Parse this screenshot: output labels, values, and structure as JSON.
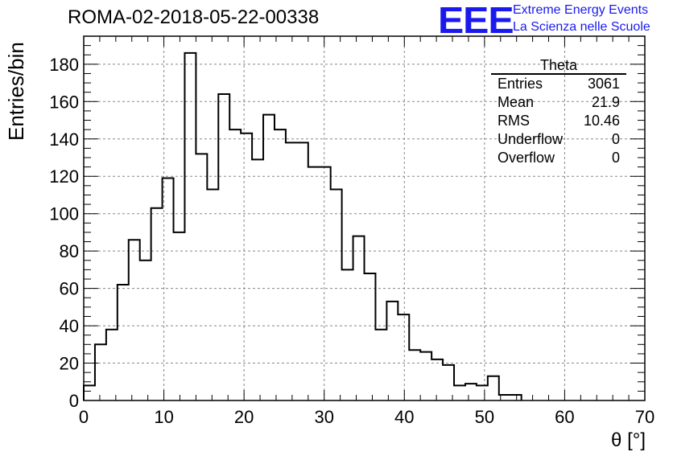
{
  "run_title": "ROMA-02-2018-05-22-00338",
  "logo": {
    "mark": "EEE",
    "line1": "Extreme Energy Events",
    "line2": "La Scienza nelle Scuole"
  },
  "stats_box": {
    "title": "Theta",
    "rows": [
      {
        "label": "Entries",
        "value": "3061"
      },
      {
        "label": "Mean",
        "value": "21.9"
      },
      {
        "label": "RMS",
        "value": "10.46"
      },
      {
        "label": "Underflow",
        "value": "0"
      },
      {
        "label": "Overflow",
        "value": "0"
      }
    ]
  },
  "colors": {
    "line": "#000000",
    "grid": "#888888",
    "logo": "#1a1aee"
  },
  "chart_data": {
    "type": "bar",
    "style": "step-histogram",
    "xlabel": "θ [°]",
    "ylabel": "Entries/bin",
    "xlim": [
      0,
      70
    ],
    "ylim": [
      0,
      195
    ],
    "xticks": [
      0,
      10,
      20,
      30,
      40,
      50,
      60,
      70
    ],
    "yticks": [
      0,
      20,
      40,
      60,
      80,
      100,
      120,
      140,
      160,
      180
    ],
    "grid": true,
    "bin_width": 1.4,
    "bins": [
      {
        "x0": 0.0,
        "y": 8
      },
      {
        "x0": 1.4,
        "y": 30
      },
      {
        "x0": 2.8,
        "y": 38
      },
      {
        "x0": 4.2,
        "y": 62
      },
      {
        "x0": 5.6,
        "y": 86
      },
      {
        "x0": 7.0,
        "y": 75
      },
      {
        "x0": 8.4,
        "y": 103
      },
      {
        "x0": 9.8,
        "y": 119
      },
      {
        "x0": 11.2,
        "y": 90
      },
      {
        "x0": 12.6,
        "y": 186
      },
      {
        "x0": 14.0,
        "y": 132
      },
      {
        "x0": 15.4,
        "y": 113
      },
      {
        "x0": 16.8,
        "y": 164
      },
      {
        "x0": 18.2,
        "y": 145
      },
      {
        "x0": 19.6,
        "y": 143
      },
      {
        "x0": 21.0,
        "y": 129
      },
      {
        "x0": 22.4,
        "y": 153
      },
      {
        "x0": 23.8,
        "y": 145
      },
      {
        "x0": 25.2,
        "y": 138
      },
      {
        "x0": 26.6,
        "y": 138
      },
      {
        "x0": 28.0,
        "y": 125
      },
      {
        "x0": 29.4,
        "y": 125
      },
      {
        "x0": 30.8,
        "y": 113
      },
      {
        "x0": 32.2,
        "y": 70
      },
      {
        "x0": 33.6,
        "y": 88
      },
      {
        "x0": 35.0,
        "y": 68
      },
      {
        "x0": 36.4,
        "y": 38
      },
      {
        "x0": 37.8,
        "y": 53
      },
      {
        "x0": 39.2,
        "y": 46
      },
      {
        "x0": 40.6,
        "y": 27
      },
      {
        "x0": 42.0,
        "y": 26
      },
      {
        "x0": 43.4,
        "y": 22
      },
      {
        "x0": 44.8,
        "y": 19
      },
      {
        "x0": 46.2,
        "y": 8
      },
      {
        "x0": 47.6,
        "y": 9
      },
      {
        "x0": 49.0,
        "y": 8
      },
      {
        "x0": 50.4,
        "y": 13
      },
      {
        "x0": 51.8,
        "y": 3
      },
      {
        "x0": 53.2,
        "y": 3
      }
    ]
  }
}
